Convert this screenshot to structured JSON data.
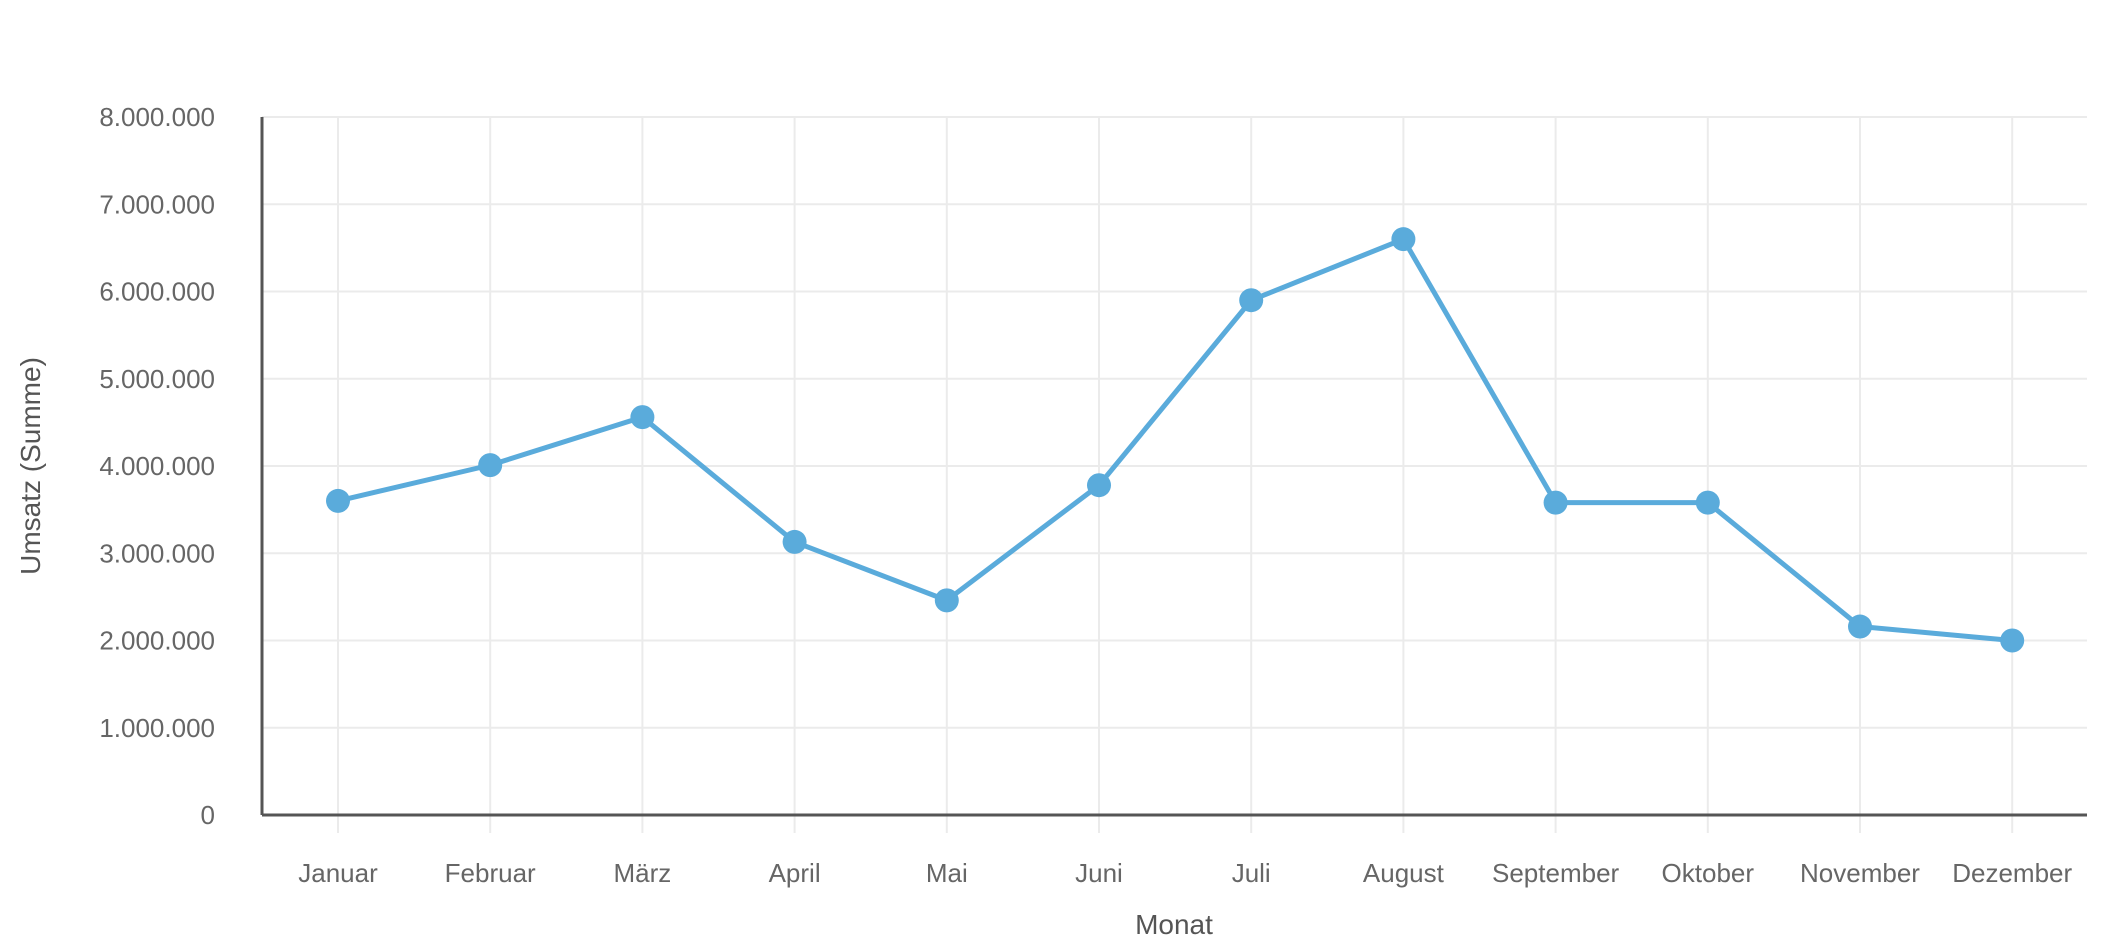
{
  "chart_data": {
    "type": "line",
    "title": "",
    "xlabel": "Monat",
    "ylabel": "Umsatz (Summe)",
    "categories": [
      "Januar",
      "Februar",
      "März",
      "April",
      "Mai",
      "Juni",
      "Juli",
      "August",
      "September",
      "Oktober",
      "November",
      "Dezember"
    ],
    "series": [
      {
        "values": [
          3600000,
          4010000,
          4560000,
          3130000,
          2460000,
          3780000,
          5900000,
          6600000,
          3580000,
          3580000,
          2160000,
          2000000
        ],
        "color": "#5aabdb"
      }
    ],
    "ylim": [
      0,
      8000000
    ],
    "yticks": [
      0,
      1000000,
      2000000,
      3000000,
      4000000,
      5000000,
      6000000,
      7000000,
      8000000
    ],
    "ytick_labels": [
      "0",
      "1.000.000",
      "2.000.000",
      "3.000.000",
      "4.000.000",
      "5.000.000",
      "6.000.000",
      "7.000.000",
      "8.000.000"
    ],
    "grid": true,
    "legend": "none"
  }
}
